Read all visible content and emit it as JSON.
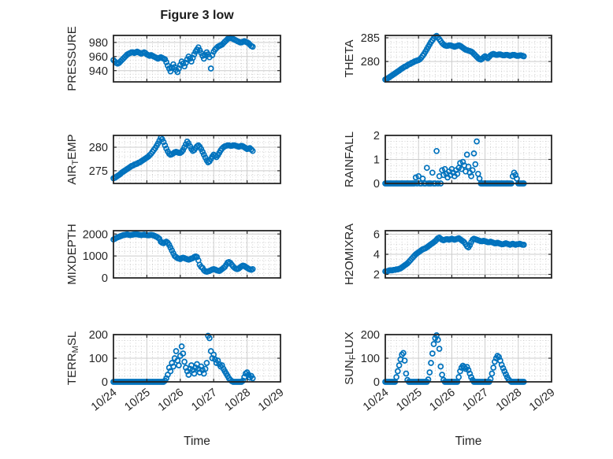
{
  "figure": {
    "title": "Figure 3 low",
    "xlabel": "Time",
    "x_ticklabels": [
      "10/24",
      "10/25",
      "10/26",
      "10/27",
      "10/28",
      "10/29"
    ],
    "colors": {
      "marker": "#0072BD",
      "axis": "#262626",
      "text": "#262626",
      "grid_major": "#cccccc",
      "grid_minor": "#cfcfcf",
      "background": "#ffffff"
    }
  },
  "chart_data": [
    {
      "type": "scatter",
      "id": "pressure",
      "ylabel": "PRESSURE",
      "ylabel_parts": [
        {
          "text": "PRESSURE",
          "sub": false
        }
      ],
      "row": 0,
      "col": 0,
      "xlim": [
        0,
        5
      ],
      "x_step_days": 0.0416667,
      "x_minor_step_days": 0.1666667,
      "ylim": [
        924,
        990
      ],
      "yticks": [
        940,
        960,
        980
      ],
      "yticklabels": [
        "940",
        "960",
        "980"
      ],
      "y_minor_step": 5,
      "values": [
        955,
        953,
        951,
        950,
        951,
        953,
        955,
        957,
        959,
        961,
        963,
        964,
        965,
        966,
        966,
        965,
        966,
        967,
        966,
        965,
        964,
        965,
        966,
        965,
        963,
        962,
        961,
        962,
        961,
        960,
        959,
        958,
        957,
        958,
        959,
        958,
        957,
        956,
        952,
        947,
        943,
        939,
        944,
        949,
        945,
        941,
        938,
        943,
        948,
        953,
        950,
        946,
        951,
        956,
        960,
        957,
        953,
        958,
        963,
        967,
        970,
        973,
        969,
        965,
        961,
        957,
        962,
        966,
        963,
        959,
        943,
        962,
        967,
        970,
        972,
        974,
        975,
        976,
        977,
        979,
        981,
        983,
        985,
        986,
        987,
        986,
        985,
        984,
        983,
        982,
        981,
        980,
        980,
        981,
        982,
        981,
        980,
        979,
        977,
        975,
        974
      ]
    },
    {
      "type": "scatter",
      "id": "theta",
      "ylabel": "THETA",
      "ylabel_parts": [
        {
          "text": "THETA",
          "sub": false
        }
      ],
      "row": 0,
      "col": 1,
      "xlim": [
        0,
        5
      ],
      "x_step_days": 0.0416667,
      "x_minor_step_days": 0.1666667,
      "ylim": [
        275.7,
        285.5
      ],
      "yticks": [
        280,
        285
      ],
      "yticklabels": [
        "280",
        "285"
      ],
      "y_minor_step": 1,
      "values": [
        276.2,
        276.3,
        276.5,
        276.7,
        276.9,
        277.1,
        277.3,
        277.5,
        277.7,
        277.9,
        278.1,
        278.3,
        278.5,
        278.7,
        278.9,
        279.0,
        279.2,
        279.4,
        279.5,
        279.7,
        279.8,
        280.0,
        280.1,
        280.2,
        280.3,
        280.5,
        280.8,
        281.2,
        281.6,
        282.1,
        282.6,
        283.1,
        283.6,
        284.1,
        284.5,
        284.9,
        285.2,
        285.4,
        285.1,
        284.7,
        284.3,
        283.9,
        283.6,
        283.4,
        283.3,
        283.3,
        283.4,
        283.4,
        283.3,
        283.2,
        283.1,
        283.2,
        283.3,
        283.4,
        283.3,
        283.1,
        282.9,
        282.7,
        282.5,
        282.4,
        282.3,
        282.2,
        282.1,
        281.9,
        281.6,
        281.3,
        281.0,
        280.7,
        280.5,
        280.4,
        280.6,
        280.9,
        281.1,
        280.9,
        280.7,
        281.0,
        281.3,
        281.5,
        281.6,
        281.5,
        281.4,
        281.4,
        281.5,
        281.5,
        281.4,
        281.3,
        281.3,
        281.4,
        281.4,
        281.3,
        281.2,
        281.3,
        281.4,
        281.4,
        281.3,
        281.2,
        281.2,
        281.3,
        281.3,
        281.2,
        281.1
      ]
    },
    {
      "type": "scatter",
      "id": "air-temp",
      "ylabel": "AIR_TEMP",
      "ylabel_parts": [
        {
          "text": "AIR",
          "sub": false
        },
        {
          "text": "T",
          "sub": true
        },
        {
          "text": "EMP",
          "sub": false
        }
      ],
      "row": 1,
      "col": 0,
      "xlim": [
        0,
        5
      ],
      "x_step_days": 0.0416667,
      "x_minor_step_days": 0.1666667,
      "ylim": [
        272.3,
        282.5
      ],
      "yticks": [
        275,
        280
      ],
      "yticklabels": [
        "275",
        "280"
      ],
      "y_minor_step": 1,
      "values": [
        273.4,
        273.5,
        273.7,
        273.9,
        274.1,
        274.3,
        274.6,
        274.8,
        275.0,
        275.2,
        275.4,
        275.6,
        275.8,
        276.0,
        276.1,
        276.3,
        276.4,
        276.5,
        276.7,
        276.8,
        277.0,
        277.2,
        277.4,
        277.6,
        277.8,
        278.0,
        278.3,
        278.6,
        279.0,
        279.4,
        279.8,
        280.3,
        280.8,
        281.4,
        282.0,
        281.7,
        281.1,
        280.4,
        279.7,
        279.1,
        278.6,
        278.4,
        278.5,
        278.7,
        278.9,
        279.0,
        278.9,
        278.8,
        278.8,
        279.0,
        279.4,
        280.0,
        280.6,
        281.2,
        280.8,
        280.2,
        279.6,
        279.2,
        279.4,
        279.8,
        280.2,
        280.4,
        280.1,
        279.6,
        279.0,
        278.4,
        277.8,
        277.2,
        276.8,
        277.0,
        277.5,
        278.0,
        278.4,
        278.2,
        277.9,
        278.3,
        278.8,
        279.3,
        279.7,
        280.0,
        280.2,
        280.3,
        280.4,
        280.4,
        280.3,
        280.3,
        280.4,
        280.4,
        280.3,
        280.2,
        280.1,
        280.2,
        280.3,
        280.2,
        280.0,
        279.8,
        279.6,
        279.7,
        279.8,
        279.5,
        279.2
      ]
    },
    {
      "type": "scatter",
      "id": "rainfall",
      "ylabel": "RAINFALL",
      "ylabel_parts": [
        {
          "text": "RAINFALL",
          "sub": false
        }
      ],
      "row": 1,
      "col": 1,
      "xlim": [
        0,
        5
      ],
      "x_step_days": 0.0416667,
      "x_minor_step_days": 0.1666667,
      "ylim": [
        0,
        2
      ],
      "yticks": [
        0,
        1,
        2
      ],
      "yticklabels": [
        "0",
        "1",
        "2"
      ],
      "y_minor_step": 0.25,
      "values": [
        0,
        0,
        0,
        0,
        0,
        0,
        0,
        0,
        0,
        0,
        0,
        0,
        0,
        0,
        0,
        0,
        0,
        0,
        0,
        0,
        0,
        0,
        0.25,
        0,
        0.3,
        0,
        0,
        0.2,
        0,
        0,
        0.65,
        0,
        0,
        0,
        0.45,
        0,
        0,
        1.35,
        0,
        0.3,
        0,
        0.55,
        0.35,
        0.6,
        0.4,
        0.25,
        0.5,
        0.35,
        0.6,
        0.45,
        0.3,
        0.55,
        0.4,
        0.65,
        0.85,
        0.6,
        0.9,
        0.75,
        0.5,
        1.2,
        0.7,
        0.45,
        0.3,
        0.55,
        1.25,
        0.8,
        1.75,
        0.4,
        0.2,
        0,
        0,
        0,
        0,
        0,
        0,
        0,
        0,
        0,
        0,
        0,
        0,
        0,
        0,
        0,
        0,
        0,
        0,
        0,
        0,
        0,
        0,
        0,
        0.3,
        0.45,
        0.35,
        0.2,
        0,
        0,
        0,
        0,
        0
      ]
    },
    {
      "type": "scatter",
      "id": "mixdepth",
      "ylabel": "MIXDEPTH",
      "ylabel_parts": [
        {
          "text": "MIXDEPTH",
          "sub": false
        }
      ],
      "row": 2,
      "col": 0,
      "xlim": [
        0,
        5
      ],
      "x_step_days": 0.0416667,
      "x_minor_step_days": 0.1666667,
      "ylim": [
        0,
        2150
      ],
      "yticks": [
        0,
        1000,
        2000
      ],
      "yticklabels": [
        "0",
        "1000",
        "2000"
      ],
      "y_minor_step": 200,
      "values": [
        1750,
        1780,
        1820,
        1850,
        1870,
        1900,
        1920,
        1950,
        1960,
        1970,
        1980,
        1960,
        1950,
        1960,
        1970,
        1980,
        1990,
        1980,
        1970,
        1960,
        1950,
        1960,
        1970,
        1960,
        1950,
        1940,
        1950,
        1960,
        1950,
        1930,
        1900,
        1870,
        1830,
        1780,
        1650,
        1600,
        1580,
        1620,
        1650,
        1600,
        1500,
        1380,
        1250,
        1120,
        1000,
        950,
        900,
        880,
        860,
        900,
        920,
        900,
        870,
        850,
        830,
        850,
        880,
        900,
        950,
        980,
        950,
        800,
        600,
        500,
        450,
        350,
        300,
        280,
        300,
        320,
        350,
        380,
        400,
        380,
        350,
        330,
        320,
        350,
        400,
        450,
        500,
        600,
        700,
        720,
        680,
        600,
        520,
        460,
        420,
        400,
        430,
        480,
        530,
        560,
        540,
        500,
        460,
        420,
        390,
        370,
        400
      ]
    },
    {
      "type": "scatter",
      "id": "h2omixra",
      "ylabel": "H2OMIXRA",
      "ylabel_parts": [
        {
          "text": "H2OMIXRA",
          "sub": false
        }
      ],
      "row": 2,
      "col": 1,
      "xlim": [
        0,
        5
      ],
      "x_step_days": 0.0416667,
      "x_minor_step_days": 0.1666667,
      "ylim": [
        1.65,
        6.35
      ],
      "yticks": [
        2,
        4,
        6
      ],
      "yticklabels": [
        "2",
        "4",
        "6"
      ],
      "y_minor_step": 0.5,
      "values": [
        2.3,
        2.3,
        2.35,
        2.4,
        2.4,
        2.4,
        2.45,
        2.45,
        2.5,
        2.5,
        2.55,
        2.6,
        2.7,
        2.8,
        2.9,
        3.0,
        3.1,
        3.25,
        3.4,
        3.55,
        3.7,
        3.85,
        4.0,
        4.1,
        4.2,
        4.3,
        4.4,
        4.5,
        4.55,
        4.6,
        4.7,
        4.8,
        4.9,
        5.0,
        5.1,
        5.2,
        5.3,
        5.45,
        5.6,
        5.65,
        5.55,
        5.45,
        5.4,
        5.45,
        5.5,
        5.5,
        5.45,
        5.5,
        5.55,
        5.5,
        5.45,
        5.5,
        5.55,
        5.6,
        5.5,
        5.4,
        5.3,
        5.2,
        5.0,
        4.8,
        4.7,
        4.9,
        5.2,
        5.45,
        5.55,
        5.5,
        5.45,
        5.4,
        5.35,
        5.3,
        5.3,
        5.35,
        5.3,
        5.25,
        5.2,
        5.2,
        5.25,
        5.2,
        5.15,
        5.1,
        5.1,
        5.15,
        5.1,
        5.05,
        5.0,
        5.0,
        5.05,
        5.1,
        5.05,
        5.0,
        4.95,
        5.0,
        5.05,
        5.0,
        4.95,
        5.0,
        5.0,
        5.05,
        5.0,
        4.95,
        4.95
      ]
    },
    {
      "type": "scatter",
      "id": "terr-msl",
      "ylabel": "TERR_MSL",
      "ylabel_parts": [
        {
          "text": "TERR",
          "sub": false
        },
        {
          "text": "M",
          "sub": true
        },
        {
          "text": "SL",
          "sub": false
        }
      ],
      "row": 3,
      "col": 0,
      "xlim": [
        0,
        5
      ],
      "x_step_days": 0.0416667,
      "x_minor_step_days": 0.1666667,
      "ylim": [
        0,
        200
      ],
      "yticks": [
        0,
        100,
        200
      ],
      "yticklabels": [
        "0",
        "100",
        "200"
      ],
      "y_minor_step": 25,
      "values": [
        0,
        0,
        0,
        0,
        0,
        0,
        0,
        0,
        0,
        0,
        0,
        0,
        0,
        0,
        0,
        0,
        0,
        0,
        0,
        0,
        0,
        0,
        0,
        0,
        0,
        0,
        0,
        0,
        0,
        0,
        0,
        0,
        0,
        0,
        0,
        0,
        0,
        5,
        15,
        30,
        60,
        45,
        80,
        65,
        100,
        130,
        90,
        70,
        110,
        150,
        120,
        85,
        60,
        45,
        30,
        55,
        70,
        50,
        35,
        60,
        75,
        55,
        40,
        65,
        50,
        35,
        55,
        80,
        195,
        185,
        130,
        100,
        115,
        95,
        80,
        90,
        75,
        65,
        70,
        55,
        45,
        35,
        25,
        15,
        8,
        3,
        0,
        0,
        0,
        0,
        0,
        0,
        0,
        5,
        20,
        35,
        40,
        30,
        18,
        25,
        15
      ]
    },
    {
      "type": "scatter",
      "id": "sun-flux",
      "ylabel": "SUN_FLUX",
      "ylabel_parts": [
        {
          "text": "SUN",
          "sub": false
        },
        {
          "text": "F",
          "sub": true
        },
        {
          "text": "LUX",
          "sub": false
        }
      ],
      "row": 3,
      "col": 1,
      "xlim": [
        0,
        5
      ],
      "x_step_days": 0.0416667,
      "x_minor_step_days": 0.1666667,
      "ylim": [
        0,
        200
      ],
      "yticks": [
        0,
        100,
        200
      ],
      "yticklabels": [
        "0",
        "100",
        "200"
      ],
      "y_minor_step": 25,
      "values": [
        0,
        0,
        0,
        0,
        0,
        0,
        0,
        0,
        20,
        45,
        70,
        95,
        115,
        122,
        90,
        35,
        8,
        0,
        0,
        0,
        0,
        0,
        0,
        0,
        0,
        0,
        0,
        0,
        0,
        0,
        0,
        10,
        40,
        80,
        120,
        160,
        185,
        197,
        178,
        140,
        65,
        30,
        8,
        0,
        0,
        0,
        0,
        0,
        0,
        0,
        0,
        0,
        0,
        20,
        45,
        60,
        68,
        62,
        55,
        63,
        50,
        35,
        20,
        8,
        0,
        0,
        0,
        0,
        0,
        0,
        0,
        0,
        0,
        0,
        0,
        0,
        12,
        35,
        60,
        85,
        100,
        110,
        105,
        90,
        72,
        58,
        45,
        32,
        20,
        10,
        4,
        0,
        0,
        0,
        0,
        0,
        0,
        0,
        0,
        0,
        0
      ]
    }
  ]
}
